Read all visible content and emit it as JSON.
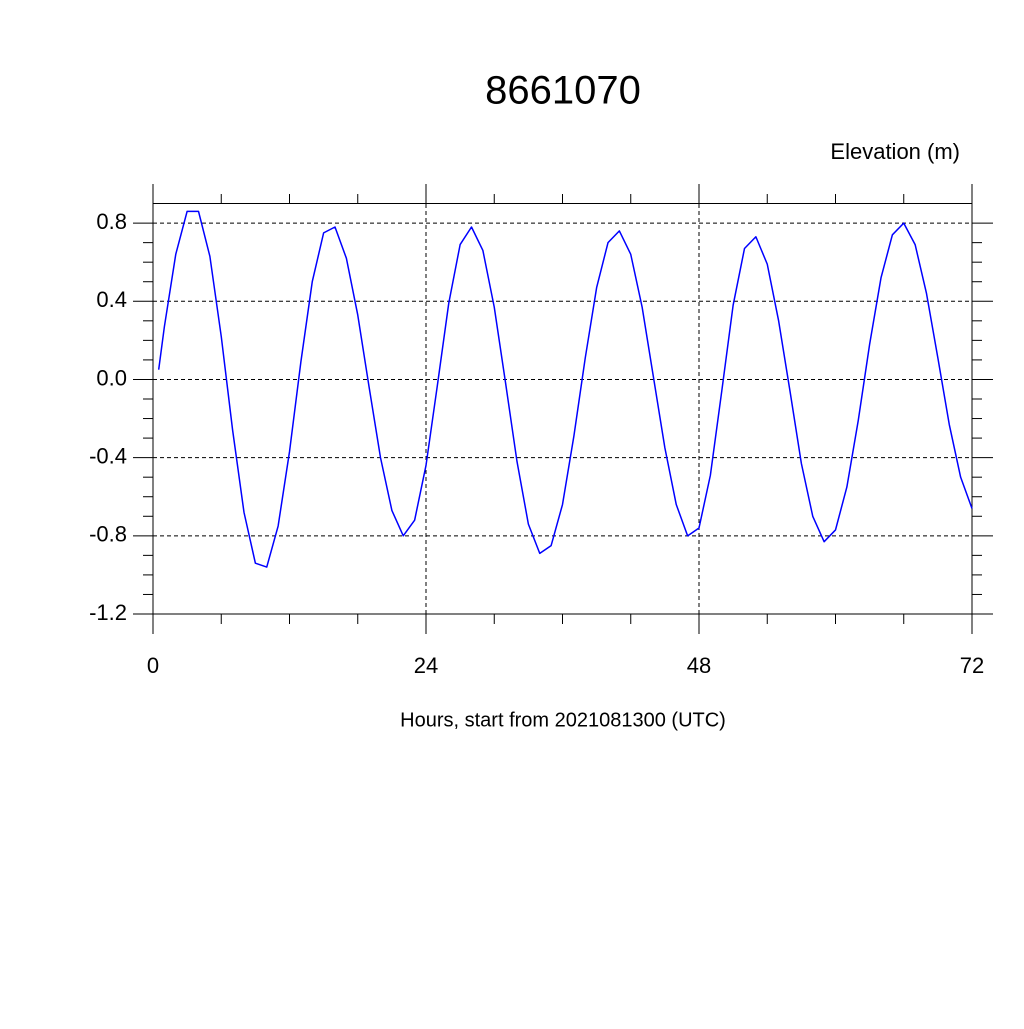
{
  "chart_data": {
    "type": "line",
    "title": "8661070",
    "ylabel": "Elevation (m)",
    "xlabel": "Hours, start from 2021081300 (UTC)",
    "xlim": [
      0,
      72
    ],
    "xticks": [
      0,
      24,
      48,
      72
    ],
    "ylim": [
      -1.2,
      1.0
    ],
    "yticks": [
      {
        "value": 0.8,
        "label": "0.8"
      },
      {
        "value": 0.4,
        "label": "0.4"
      },
      {
        "value": 0,
        "label": "0.0"
      },
      {
        "value": -0.4,
        "label": "-0.4"
      },
      {
        "value": -0.8,
        "label": "-0.8"
      },
      {
        "value": -1.2,
        "label": "-1.2"
      }
    ],
    "grid": true,
    "hline": 0.9,
    "x": [
      0.5,
      1,
      2,
      3,
      4,
      5,
      6,
      7,
      8,
      9,
      10,
      11,
      12,
      13,
      14,
      15,
      16,
      17,
      18,
      19,
      20,
      21,
      22,
      23,
      24,
      25,
      26,
      27,
      28,
      29,
      30,
      31,
      32,
      33,
      34,
      35,
      36,
      37,
      38,
      39,
      40,
      41,
      42,
      43,
      44,
      45,
      46,
      47,
      48,
      49,
      50,
      51,
      52,
      53,
      54,
      55,
      56,
      57,
      58,
      59,
      60,
      61,
      62,
      63,
      64,
      65,
      66,
      67,
      68,
      69,
      70,
      71,
      72
    ],
    "series": [
      {
        "color": "#0000ff",
        "values": [
          0.05,
          0.27,
          0.64,
          0.86,
          0.86,
          0.63,
          0.22,
          -0.26,
          -0.68,
          -0.94,
          -0.96,
          -0.75,
          -0.37,
          0.09,
          0.5,
          0.75,
          0.78,
          0.62,
          0.33,
          -0.04,
          -0.4,
          -0.67,
          -0.8,
          -0.72,
          -0.44,
          -0.03,
          0.39,
          0.69,
          0.78,
          0.66,
          0.37,
          -0.02,
          -0.42,
          -0.74,
          -0.89,
          -0.85,
          -0.64,
          -0.29,
          0.11,
          0.47,
          0.7,
          0.76,
          0.64,
          0.37,
          0.01,
          -0.35,
          -0.64,
          -0.8,
          -0.76,
          -0.49,
          -0.06,
          0.38,
          0.67,
          0.73,
          0.59,
          0.3,
          -0.06,
          -0.43,
          -0.7,
          -0.83,
          -0.77,
          -0.55,
          -0.21,
          0.18,
          0.52,
          0.74,
          0.8,
          0.69,
          0.44,
          0.11,
          -0.23,
          -0.5,
          -0.66
        ]
      }
    ]
  }
}
